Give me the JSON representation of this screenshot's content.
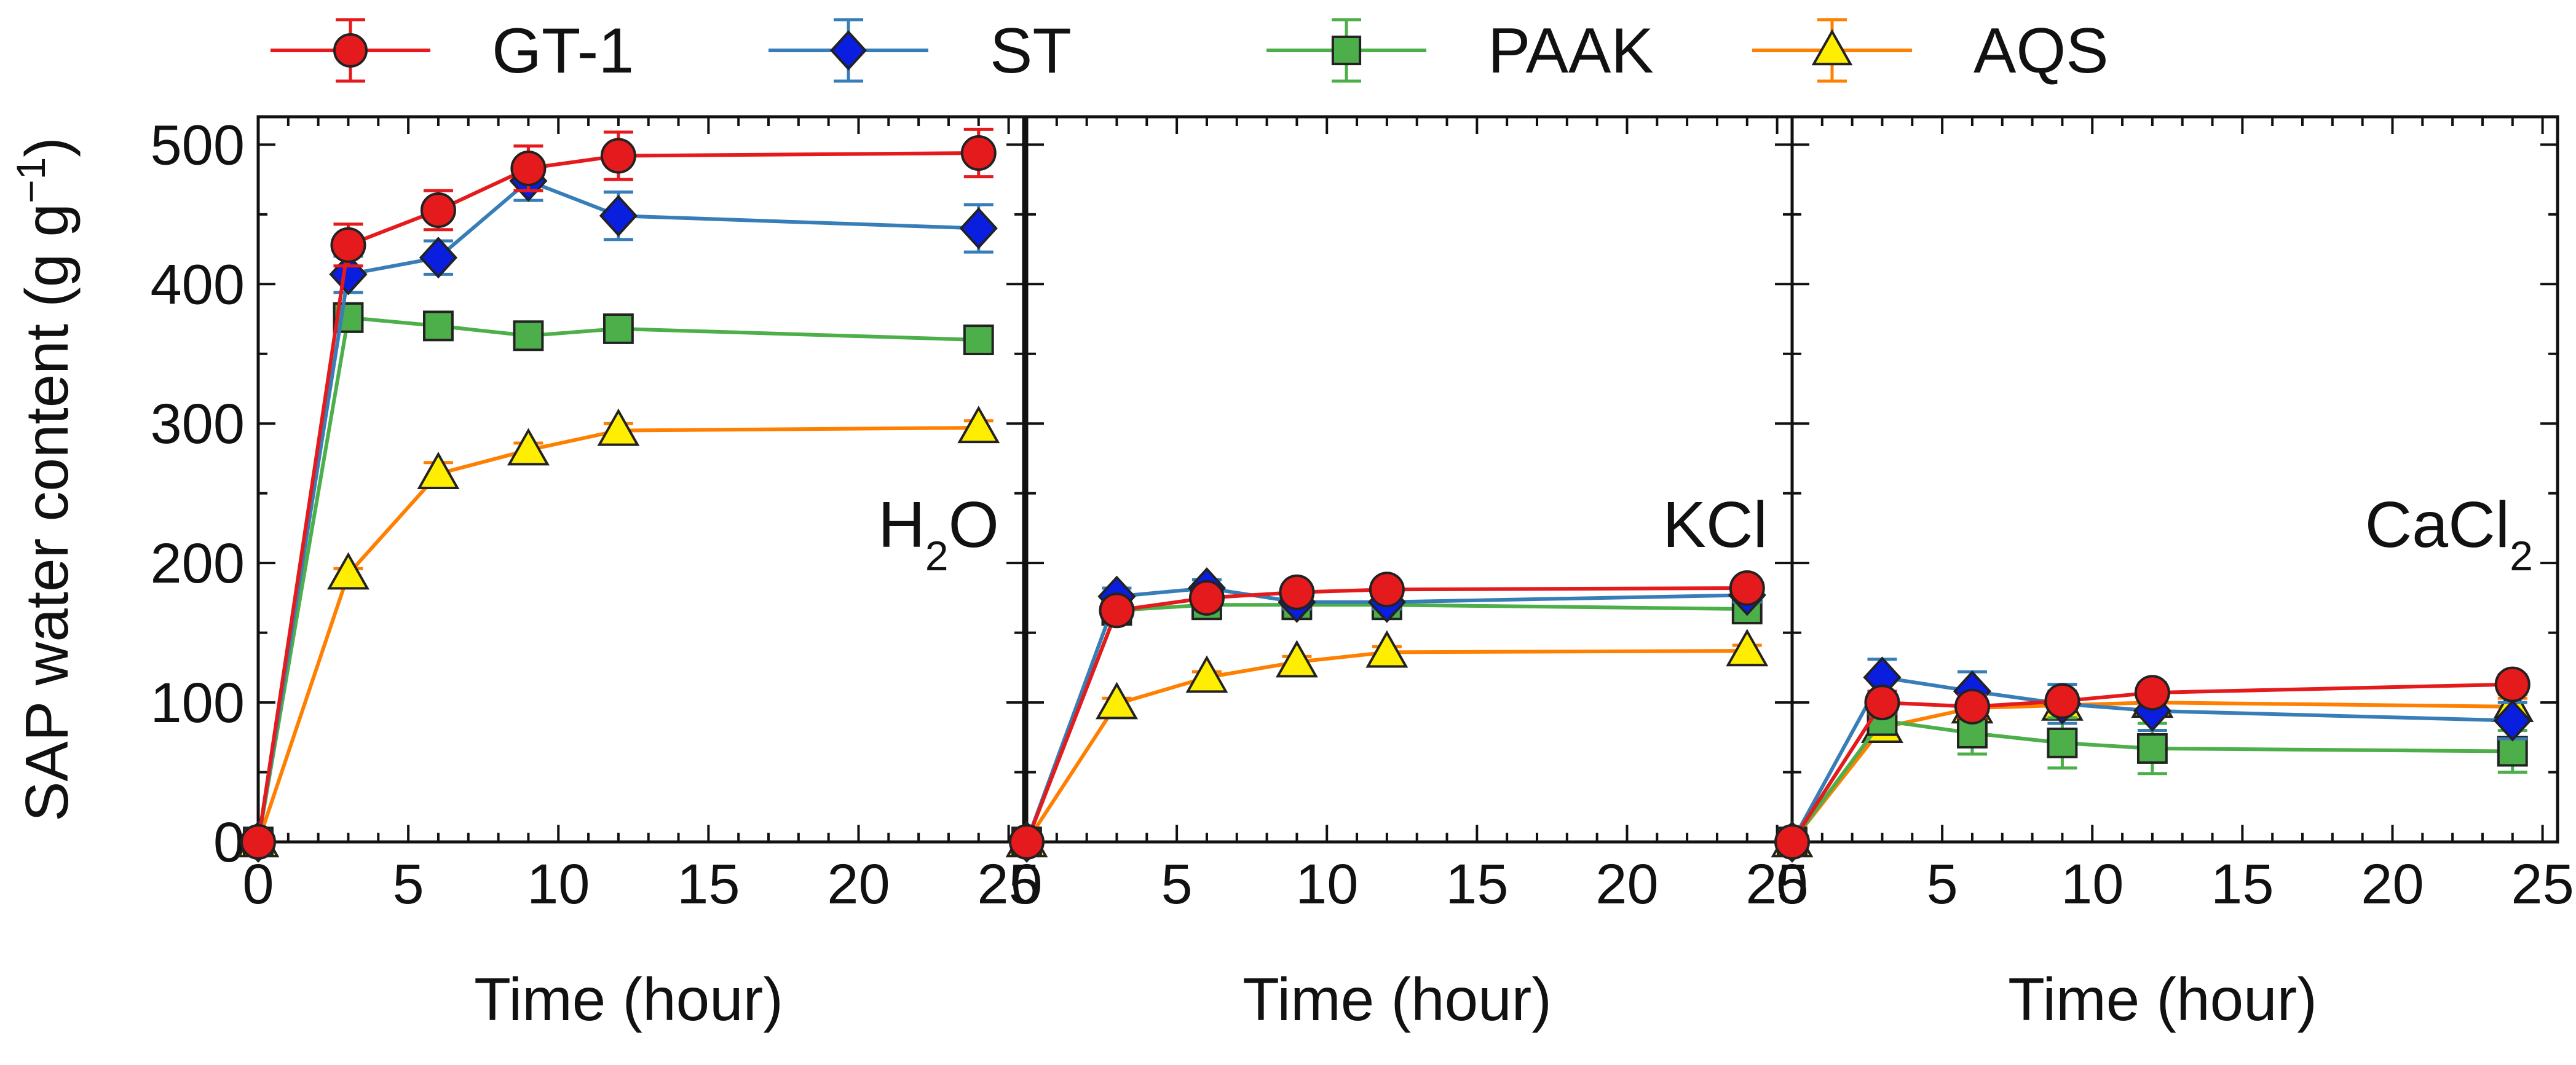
{
  "chart_data": {
    "type": "line",
    "ylabel": "SAP water content (g g",
    "ylabel_sup": "−1",
    "ylabel_close": ")",
    "xlabel": "Time (hour)",
    "xlim": [
      0,
      25.5
    ],
    "ylim": [
      0,
      520
    ],
    "x_ticks": [
      0,
      5,
      10,
      15,
      20,
      25
    ],
    "y_ticks": [
      0,
      100,
      200,
      300,
      400,
      500
    ],
    "x": [
      0,
      3,
      6,
      9,
      12,
      24
    ],
    "legend": [
      {
        "name": "GT-1",
        "color": "#e41a1c",
        "marker": "circle"
      },
      {
        "name": "ST",
        "color": "#377eb8",
        "marker_fill": "#0a1ee0",
        "marker": "diamond"
      },
      {
        "name": "PAAK",
        "color": "#4daf4a",
        "marker": "square"
      },
      {
        "name": "AQS",
        "color": "#ff7f00",
        "marker_fill": "#ffee00",
        "marker": "triangle"
      }
    ],
    "panels": [
      {
        "label": "H",
        "label_sub": "2",
        "label_after": "O",
        "series": [
          {
            "name": "GT-1",
            "values": [
              0,
              428,
              453,
              483,
              492,
              494
            ],
            "errors": [
              0,
              15,
              14,
              16,
              17,
              17
            ]
          },
          {
            "name": "ST",
            "values": [
              0,
              407,
              419,
              474,
              449,
              440
            ],
            "errors": [
              0,
              13,
              12,
              14,
              17,
              17
            ]
          },
          {
            "name": "PAAK",
            "values": [
              0,
              376,
              370,
              363,
              368,
              360
            ],
            "errors": [
              0,
              10,
              8,
              8,
              8,
              9
            ]
          },
          {
            "name": "AQS",
            "values": [
              0,
              192,
              264,
              281,
              295,
              297
            ],
            "errors": [
              0,
              4,
              8,
              5,
              5,
              5
            ]
          }
        ]
      },
      {
        "label": "KCl",
        "label_sub": "",
        "label_after": "",
        "series": [
          {
            "name": "GT-1",
            "values": [
              0,
              166,
              175,
              179,
              181,
              182
            ],
            "errors": [
              0,
              6,
              5,
              5,
              5,
              5
            ]
          },
          {
            "name": "ST",
            "values": [
              0,
              176,
              182,
              172,
              172,
              177
            ],
            "errors": [
              0,
              6,
              6,
              5,
              5,
              5
            ]
          },
          {
            "name": "PAAK",
            "values": [
              0,
              166,
              170,
              170,
              170,
              167
            ],
            "errors": [
              0,
              5,
              5,
              5,
              5,
              5
            ]
          },
          {
            "name": "AQS",
            "values": [
              0,
              99,
              118,
              129,
              136,
              137
            ],
            "errors": [
              0,
              4,
              4,
              4,
              4,
              4
            ]
          }
        ]
      },
      {
        "label": "CaCl",
        "label_sub": "2",
        "label_after": "",
        "series": [
          {
            "name": "GT-1",
            "values": [
              0,
              100,
              97,
              101,
              107,
              113
            ],
            "errors": [
              0,
              8,
              8,
              7,
              7,
              7
            ]
          },
          {
            "name": "ST",
            "values": [
              0,
              118,
              108,
              99,
              94,
              87
            ],
            "errors": [
              0,
              13,
              14,
              14,
              14,
              13
            ]
          },
          {
            "name": "PAAK",
            "values": [
              0,
              87,
              78,
              71,
              67,
              65
            ],
            "errors": [
              0,
              10,
              15,
              18,
              18,
              15
            ]
          },
          {
            "name": "AQS",
            "values": [
              0,
              82,
              96,
              98,
              100,
              97
            ],
            "errors": [
              0,
              6,
              6,
              6,
              6,
              6
            ]
          }
        ]
      }
    ]
  }
}
